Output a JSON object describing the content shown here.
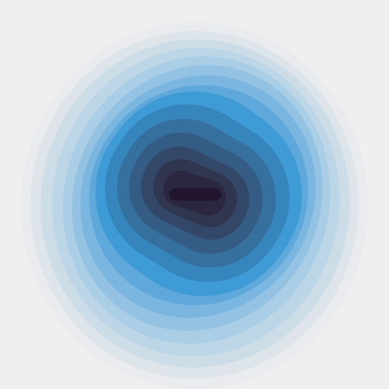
{
  "artwork": {
    "background": "#efefef",
    "band_colors": [
      "#e9ebee",
      "#dde4ea",
      "#cddde8",
      "#bdd6e7",
      "#aacee6",
      "#93c2e3",
      "#7bb6e0",
      "#5fa8db",
      "#3f9bd5",
      "#3686bd",
      "#36709f",
      "#355c84",
      "#334868",
      "#30364f",
      "#2c2740",
      "#22162e"
    ]
  }
}
